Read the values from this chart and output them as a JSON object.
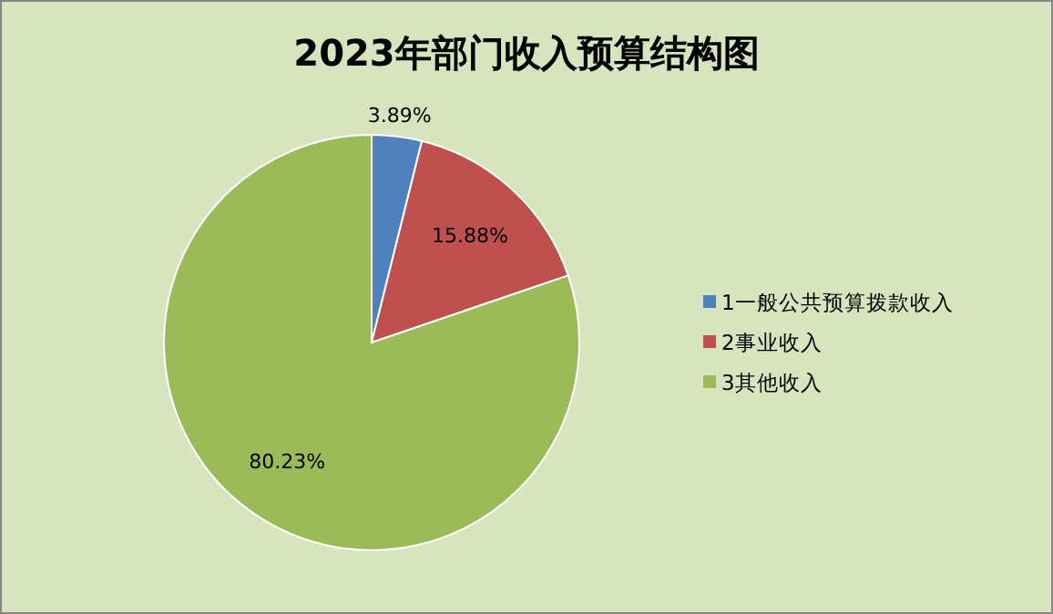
{
  "chart_data": {
    "type": "pie",
    "title": "2023年部门收入预算结构图",
    "categories": [
      "1一般公共预算拨款收入",
      "2事业收入",
      "3其他收入"
    ],
    "values": [
      3.89,
      15.88,
      80.23
    ],
    "value_labels": [
      "3.89%",
      "15.88%",
      "80.23%"
    ],
    "colors": [
      "#4f81bd",
      "#c0504d",
      "#9bbb59"
    ],
    "legend": "right"
  }
}
